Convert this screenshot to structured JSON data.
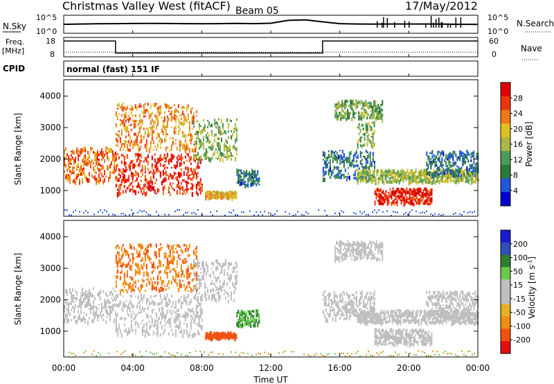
{
  "header": {
    "station": "Christmas Valley West (fitACF)",
    "beam": "Beam 05",
    "date": "17/May/2012"
  },
  "labels": {
    "nsky": "N.Sky",
    "nsky_ticks": [
      "10^5",
      "10^0"
    ],
    "nsearch": "N.Search",
    "nsearch_ticks": [
      "10^5",
      "10^0"
    ],
    "freq_line1": "Freq.",
    "freq_line2": "[MHz]",
    "freq_ticks": [
      "18",
      "8"
    ],
    "nave": "Nave",
    "nave_ticks": [
      "60",
      "0"
    ],
    "cpid": "CPID",
    "cpid_value": "normal (fast) 151 IF"
  },
  "chart_data": [
    {
      "type": "line",
      "panel": "N.Sky / N.Search",
      "y_scale": "log",
      "ylim": [
        1,
        100000
      ],
      "series": [
        {
          "name": "N.Sky",
          "x": [
            "00:00",
            "01:00",
            "02:00",
            "03:00",
            "04:00",
            "05:00",
            "06:00",
            "07:00",
            "08:00",
            "09:00",
            "10:00",
            "11:00",
            "12:00",
            "13:00",
            "14:00",
            "15:00",
            "16:00",
            "17:00",
            "18:00",
            "19:00",
            "20:00",
            "21:00",
            "22:00",
            "23:00",
            "24:00"
          ],
          "values": [
            300,
            400,
            450,
            500,
            550,
            600,
            550,
            500,
            450,
            500,
            600,
            500,
            700,
            6000,
            9000,
            2000,
            500,
            400,
            350,
            400,
            400,
            400,
            350,
            300,
            300
          ]
        }
      ]
    },
    {
      "type": "line",
      "panel": "Freq. / Nave",
      "ylim": [
        8,
        18
      ],
      "series": [
        {
          "name": "Freq.",
          "x": [
            "00:00",
            "03:00",
            "03:00",
            "15:00",
            "15:00",
            "24:00"
          ],
          "values": [
            17.5,
            17.5,
            9.6,
            9.6,
            17.5,
            17.5
          ]
        },
        {
          "name": "Nave",
          "x": [
            "00:00",
            "24:00"
          ],
          "values": [
            13,
            13
          ]
        }
      ]
    },
    {
      "type": "heatmap",
      "panel": "Power",
      "ylabel": "Slant Range [km]",
      "ylim": [
        180,
        4500
      ],
      "yticks": [
        1000,
        2000,
        3000,
        4000
      ],
      "colorbar": {
        "label": "Power [dB]",
        "ticks": [
          4,
          8,
          12,
          16,
          20,
          24,
          28
        ],
        "range": [
          0,
          32
        ]
      },
      "regions": [
        {
          "t": [
            0.0,
            3.0
          ],
          "range": [
            1300,
            2400
          ],
          "value": 24
        },
        {
          "t": [
            3.0,
            8.0
          ],
          "range": [
            900,
            2200
          ],
          "value": 28
        },
        {
          "t": [
            3.0,
            7.7
          ],
          "range": [
            2300,
            3800
          ],
          "value": 22
        },
        {
          "t": [
            7.5,
            10.0
          ],
          "range": [
            2000,
            3300
          ],
          "value": 15
        },
        {
          "t": [
            8.2,
            10.0
          ],
          "range": [
            800,
            1000
          ],
          "value": 20
        },
        {
          "t": [
            10.0,
            11.3
          ],
          "range": [
            1200,
            1700
          ],
          "value": 8
        },
        {
          "t": [
            15.0,
            18.0
          ],
          "range": [
            1400,
            2300
          ],
          "value": 8
        },
        {
          "t": [
            15.7,
            18.5
          ],
          "range": [
            3300,
            3900
          ],
          "value": 13
        },
        {
          "t": [
            17.0,
            18.0
          ],
          "range": [
            2400,
            3200
          ],
          "value": 14
        },
        {
          "t": [
            17.0,
            24.0
          ],
          "range": [
            1300,
            1700
          ],
          "value": 16
        },
        {
          "t": [
            18.0,
            21.3
          ],
          "range": [
            600,
            1100
          ],
          "value": 28
        },
        {
          "t": [
            21.0,
            24.0
          ],
          "range": [
            1500,
            2300
          ],
          "value": 8
        }
      ]
    },
    {
      "type": "heatmap",
      "panel": "Velocity",
      "ylabel": "Slant Range [km]",
      "ylim": [
        180,
        4500
      ],
      "yticks": [
        1000,
        2000,
        3000,
        4000
      ],
      "colorbar": {
        "label": "Velocity [m s^-1]",
        "ticks": [
          200,
          100,
          50,
          15,
          -15,
          -50,
          -100,
          -200
        ],
        "range": [
          -250,
          250
        ]
      },
      "regions": [
        {
          "t": [
            0.0,
            3.0
          ],
          "range": [
            1300,
            2400
          ],
          "value": 0
        },
        {
          "t": [
            3.0,
            8.0
          ],
          "range": [
            900,
            2200
          ],
          "value": 0
        },
        {
          "t": [
            3.0,
            7.7
          ],
          "range": [
            2300,
            3800
          ],
          "value": -70
        },
        {
          "t": [
            7.5,
            10.0
          ],
          "range": [
            2000,
            3300
          ],
          "value": 0
        },
        {
          "t": [
            8.2,
            10.0
          ],
          "range": [
            800,
            1000
          ],
          "value": -90
        },
        {
          "t": [
            10.0,
            11.3
          ],
          "range": [
            1200,
            1700
          ],
          "value": 30
        },
        {
          "t": [
            15.0,
            18.0
          ],
          "range": [
            1400,
            2300
          ],
          "value": 0
        },
        {
          "t": [
            15.7,
            18.5
          ],
          "range": [
            3300,
            3900
          ],
          "value": 0
        },
        {
          "t": [
            17.0,
            24.0
          ],
          "range": [
            1300,
            1700
          ],
          "value": 0
        },
        {
          "t": [
            18.0,
            21.3
          ],
          "range": [
            600,
            1100
          ],
          "value": 0
        },
        {
          "t": [
            21.0,
            24.0
          ],
          "range": [
            1500,
            2300
          ],
          "value": 0
        }
      ]
    }
  ],
  "x_axis": {
    "label": "Time UT",
    "ticks": [
      "00:00",
      "04:00",
      "08:00",
      "12:00",
      "16:00",
      "20:00",
      "00:00"
    ]
  },
  "colors": {
    "power": [
      "#0000cc",
      "#2255dd",
      "#2c7a3a",
      "#4f9a5a",
      "#aab84a",
      "#e0c020",
      "#f07818",
      "#ee3311",
      "#dd0000"
    ],
    "velocity_pos": [
      "#1a1ad0",
      "#2d4fb8",
      "#2e7d32",
      "#6ac84a"
    ],
    "velocity_mid": "#bfbfbf",
    "velocity_neg": [
      "#e8b020",
      "#f08c10",
      "#f05010",
      "#e01010"
    ]
  }
}
